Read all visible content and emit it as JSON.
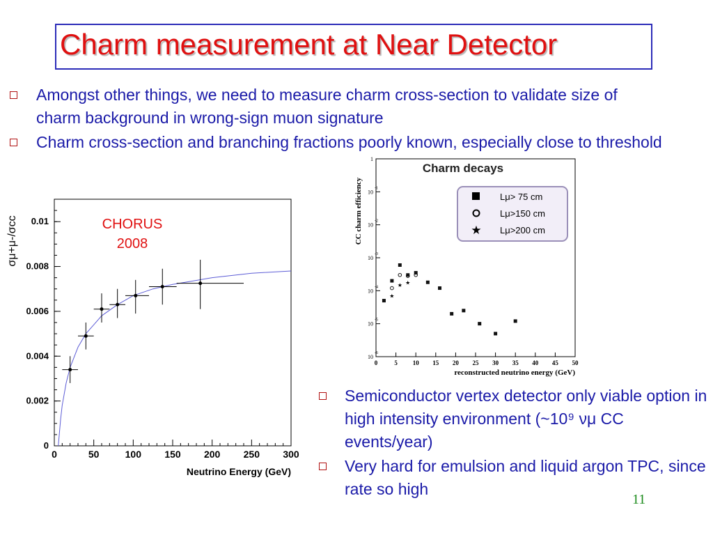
{
  "slide": {
    "title": "Charm measurement at Near Detector",
    "number": "11"
  },
  "bullets_top": [
    {
      "text": "Amongst other things, we need to  measure charm cross-section to validate size of charm background in wrong-sign muon signature"
    },
    {
      "text": "Charm cross-section and branching fractions poorly known, especially close to threshold"
    }
  ],
  "bullets_bottom": [
    {
      "text": "Semiconductor vertex detector only viable option in high intensity environment (~10⁹ νμ CC events/year)"
    },
    {
      "text": "Very hard for emulsion and liquid argon TPC, since rate so high"
    }
  ],
  "chart_data": [
    {
      "type": "scatter",
      "annotation": [
        "CHORUS",
        "2008"
      ],
      "xlabel": "Neutrino Energy (GeV)",
      "ylabel": "σμ+μ-/σcc",
      "xlim": [
        0,
        300
      ],
      "ylim": [
        0,
        0.011
      ],
      "xticks": [
        "0",
        "50",
        "100",
        "150",
        "200",
        "250",
        "300"
      ],
      "yticks": [
        "0",
        "0.002",
        "0.004",
        "0.006",
        "0.008",
        "0.01"
      ],
      "points": [
        {
          "x": 20,
          "y": 0.0034,
          "xlo": 10,
          "xhi": 30,
          "ylo": 0.0028,
          "yhi": 0.004
        },
        {
          "x": 40,
          "y": 0.0049,
          "xlo": 30,
          "xhi": 50,
          "ylo": 0.0043,
          "yhi": 0.0055
        },
        {
          "x": 60,
          "y": 0.0061,
          "xlo": 50,
          "xhi": 70,
          "ylo": 0.0055,
          "yhi": 0.0068
        },
        {
          "x": 80,
          "y": 0.0063,
          "xlo": 70,
          "xhi": 90,
          "ylo": 0.0057,
          "yhi": 0.007
        },
        {
          "x": 103,
          "y": 0.0067,
          "xlo": 90,
          "xhi": 120,
          "ylo": 0.0059,
          "yhi": 0.0074
        },
        {
          "x": 137,
          "y": 0.0071,
          "xlo": 120,
          "xhi": 155,
          "ylo": 0.0063,
          "yhi": 0.0079
        },
        {
          "x": 185,
          "y": 0.00725,
          "xlo": 155,
          "xhi": 240,
          "ylo": 0.0061,
          "yhi": 0.0083
        }
      ],
      "fit_curve": [
        [
          5,
          0.0
        ],
        [
          8,
          0.0012
        ],
        [
          10,
          0.0018
        ],
        [
          15,
          0.0028
        ],
        [
          20,
          0.0035
        ],
        [
          30,
          0.0044
        ],
        [
          40,
          0.005
        ],
        [
          50,
          0.0054
        ],
        [
          60,
          0.0058
        ],
        [
          80,
          0.0063
        ],
        [
          100,
          0.0067
        ],
        [
          125,
          0.007
        ],
        [
          150,
          0.0072
        ],
        [
          200,
          0.0075
        ],
        [
          250,
          0.0077
        ],
        [
          300,
          0.0078
        ]
      ],
      "series_colors": {
        "points": "#000000",
        "fit": "#5c5cd6"
      }
    },
    {
      "type": "scatter",
      "title": "Charm decays",
      "xlabel": "reconstructed neutrino energy (GeV)",
      "ylabel": "CC charm efficiency",
      "yscale": "log",
      "xlim": [
        0,
        50
      ],
      "ylim_exp": [
        -6,
        0
      ],
      "xticks": [
        "0",
        "5",
        "10",
        "15",
        "20",
        "25",
        "30",
        "35",
        "40",
        "45",
        "50"
      ],
      "ytick_labels": [
        {
          "base": "1",
          "exp": ""
        },
        {
          "base": "10",
          "exp": "-1"
        },
        {
          "base": "10",
          "exp": "-2"
        },
        {
          "base": "10",
          "exp": "-3"
        },
        {
          "base": "10",
          "exp": "-4"
        },
        {
          "base": "10",
          "exp": "-5"
        },
        {
          "base": "10",
          "exp": "-6"
        }
      ],
      "legend": [
        {
          "marker": "square",
          "label": "Lμ> 75 cm"
        },
        {
          "marker": "circle",
          "label": "Lμ>150 cm"
        },
        {
          "marker": "star",
          "label": "Lμ>200 cm"
        }
      ],
      "legend_placement": "top-right",
      "series": [
        {
          "name": "Lμ> 75 cm",
          "marker": "square",
          "points": [
            [
              2,
              5e-05
            ],
            [
              4,
              0.0002
            ],
            [
              6,
              0.0006
            ],
            [
              8,
              0.0003
            ],
            [
              10,
              0.00035
            ],
            [
              13,
              0.00018
            ],
            [
              16,
              0.00012
            ],
            [
              19,
              2e-05
            ],
            [
              22,
              2.5e-05
            ],
            [
              26,
              1e-05
            ],
            [
              30,
              5e-06
            ],
            [
              35,
              1.2e-05
            ]
          ]
        },
        {
          "name": "Lμ>150 cm",
          "marker": "circle",
          "points": [
            [
              4,
              0.00012
            ],
            [
              6,
              0.0003
            ],
            [
              8,
              0.00028
            ],
            [
              10,
              0.0003
            ]
          ]
        },
        {
          "name": "Lμ>200 cm",
          "marker": "star",
          "points": [
            [
              4,
              7e-05
            ],
            [
              6,
              0.00015
            ],
            [
              8,
              0.00018
            ]
          ]
        }
      ]
    }
  ]
}
